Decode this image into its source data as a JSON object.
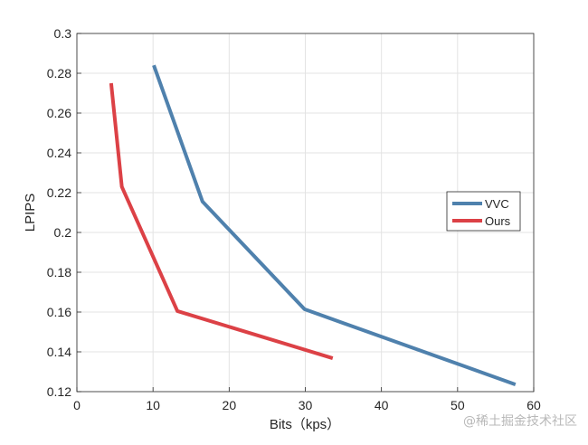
{
  "chart_data": {
    "type": "line",
    "title": "",
    "xlabel": "Bits（kps）",
    "ylabel": "LPIPS",
    "xlim": [
      0,
      60
    ],
    "ylim": [
      0.12,
      0.3
    ],
    "xticks": [
      "0",
      "10",
      "20",
      "30",
      "40",
      "50",
      "60"
    ],
    "yticks": [
      "0.12",
      "0.14",
      "0.16",
      "0.18",
      "0.2",
      "0.22",
      "0.24",
      "0.26",
      "0.28",
      "0.3"
    ],
    "grid": true,
    "legend_position": "right",
    "series": [
      {
        "name": "VVC",
        "color": "#4f81ad",
        "x": [
          10.1,
          16.5,
          29.9,
          57.6
        ],
        "y": [
          0.284,
          0.2155,
          0.1614,
          0.1236
        ]
      },
      {
        "name": "Ours",
        "color": "#dc4146",
        "x": [
          4.5,
          5.9,
          13.2,
          33.6
        ],
        "y": [
          0.275,
          0.223,
          0.1605,
          0.1368
        ]
      }
    ]
  },
  "watermark": "@稀土掘金技术社区"
}
